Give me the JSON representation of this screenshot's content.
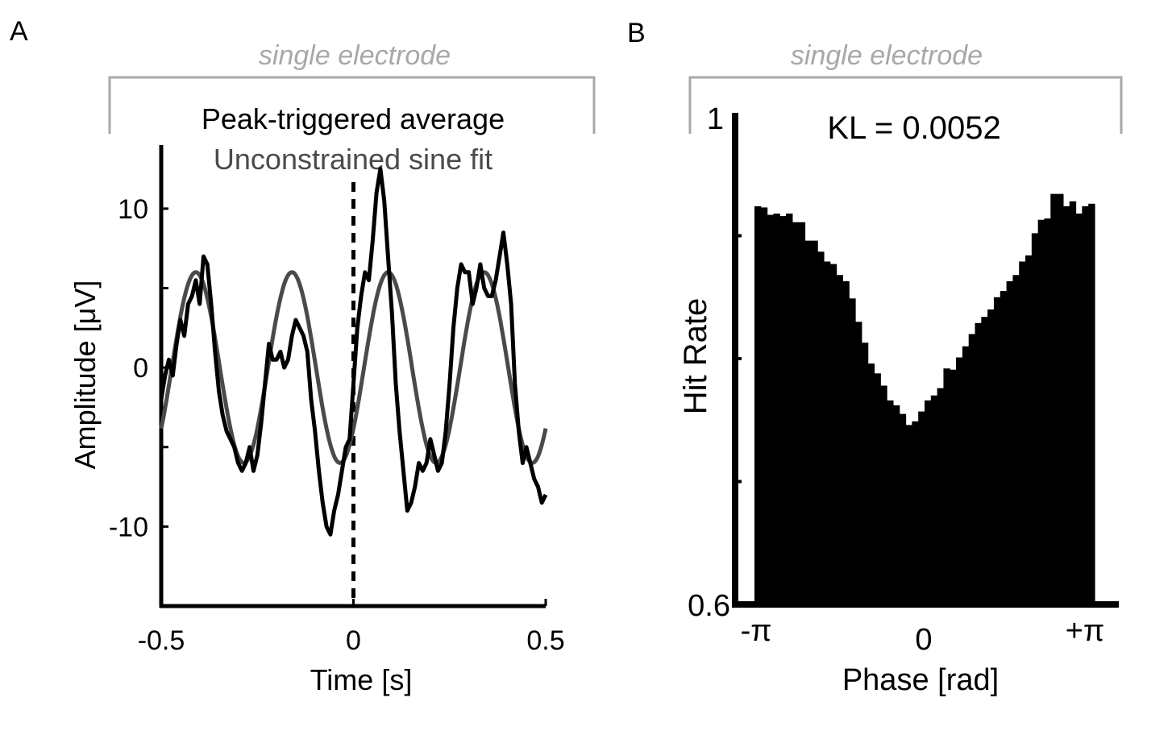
{
  "panels": {
    "a": {
      "letter": "A",
      "bracket_label": "single electrode",
      "legend": [
        "Peak-triggered average",
        "Unconstrained sine fit"
      ],
      "xlabel": "Time [s]",
      "ylabel": "Amplitude [μV]"
    },
    "b": {
      "letter": "B",
      "bracket_label": "single electrode",
      "annotation": "KL = 0.0052",
      "xlabel": "Phase [rad]",
      "ylabel": "Hit Rate"
    }
  },
  "colors": {
    "pta": "#000000",
    "sine": "#4a4a4a",
    "bracket": "#a8a8a8",
    "bars": "#000000"
  },
  "chart_data": [
    {
      "type": "line",
      "xlim": [
        -0.5,
        0.5
      ],
      "ylim": [
        -15,
        14
      ],
      "xticks": [
        -0.5,
        0,
        0.5
      ],
      "xtick_labels": [
        "-0.5",
        "0",
        "0.5"
      ],
      "yticks": [
        10,
        0,
        -10
      ],
      "ytick_labels": [
        "10",
        "0",
        "-10"
      ],
      "minor_yticks": [
        5,
        -5
      ],
      "vline_x": 0,
      "series": [
        {
          "name": "Peak-triggered average",
          "x": [
            -0.5,
            -0.49,
            -0.48,
            -0.47,
            -0.46,
            -0.45,
            -0.44,
            -0.43,
            -0.42,
            -0.41,
            -0.4,
            -0.39,
            -0.38,
            -0.37,
            -0.36,
            -0.35,
            -0.34,
            -0.33,
            -0.32,
            -0.31,
            -0.3,
            -0.29,
            -0.28,
            -0.27,
            -0.26,
            -0.25,
            -0.24,
            -0.23,
            -0.22,
            -0.21,
            -0.2,
            -0.19,
            -0.18,
            -0.17,
            -0.16,
            -0.15,
            -0.14,
            -0.13,
            -0.12,
            -0.11,
            -0.1,
            -0.09,
            -0.08,
            -0.07,
            -0.06,
            -0.05,
            -0.04,
            -0.03,
            -0.02,
            -0.01,
            0.0,
            0.01,
            0.02,
            0.03,
            0.04,
            0.05,
            0.06,
            0.07,
            0.08,
            0.09,
            0.1,
            0.11,
            0.12,
            0.13,
            0.14,
            0.15,
            0.16,
            0.17,
            0.18,
            0.19,
            0.2,
            0.21,
            0.22,
            0.23,
            0.24,
            0.25,
            0.26,
            0.27,
            0.28,
            0.29,
            0.3,
            0.31,
            0.32,
            0.33,
            0.34,
            0.35,
            0.36,
            0.37,
            0.38,
            0.39,
            0.4,
            0.41,
            0.42,
            0.43,
            0.44,
            0.45,
            0.46,
            0.47,
            0.48,
            0.49,
            0.5
          ],
          "y": [
            -2.0,
            -0.5,
            0.5,
            -0.5,
            1.5,
            3.0,
            2.0,
            4.0,
            4.5,
            5.5,
            4.0,
            7.0,
            6.5,
            4.0,
            1.0,
            -1.5,
            -3.0,
            -4.0,
            -4.5,
            -5.0,
            -6.0,
            -6.5,
            -6.0,
            -5.0,
            -6.5,
            -5.5,
            -3.5,
            -1.0,
            1.5,
            0.5,
            0.5,
            1.0,
            0.0,
            0.5,
            2.0,
            3.0,
            2.5,
            2.0,
            1.0,
            -2.0,
            -4.0,
            -6.5,
            -8.5,
            -10.0,
            -10.5,
            -9.0,
            -8.0,
            -6.5,
            -5.0,
            -4.5,
            -1.0,
            2.5,
            4.5,
            6.0,
            5.5,
            8.0,
            11.0,
            12.5,
            10.5,
            7.0,
            3.5,
            -1.0,
            -4.0,
            -6.5,
            -9.0,
            -8.5,
            -7.5,
            -6.0,
            -6.5,
            -6.0,
            -4.5,
            -5.5,
            -6.5,
            -6.0,
            -4.0,
            -1.0,
            2.5,
            5.0,
            6.5,
            6.0,
            6.0,
            4.0,
            5.0,
            6.5,
            5.0,
            4.5,
            4.5,
            5.5,
            7.0,
            8.5,
            6.5,
            4.0,
            -1.0,
            -4.0,
            -6.0,
            -5.0,
            -6.0,
            -7.0,
            -7.5,
            -8.5,
            -8.0
          ]
        },
        {
          "name": "Unconstrained sine fit",
          "function": "6*sin(2*pi*4*(t-0.0275))",
          "amplitude": 6,
          "frequency_hz": 4,
          "peak_times_s": [
            -0.4125,
            -0.1625,
            0.0875,
            0.3375
          ]
        }
      ]
    },
    {
      "type": "bar",
      "xlabel": "Phase [rad]",
      "ylabel": "Hit Rate",
      "xlim": [
        -3.1416,
        3.1416
      ],
      "ylim": [
        0.6,
        1.0
      ],
      "xtick_labels": [
        "-π",
        "0",
        "+π"
      ],
      "ytick_labels": [
        "0.6",
        "1"
      ],
      "minor_yticks": [
        0.7,
        0.8,
        0.9
      ],
      "annotation": "KL = 0.0052",
      "values": [
        0.924,
        0.923,
        0.917,
        0.918,
        0.916,
        0.918,
        0.911,
        0.911,
        0.896,
        0.896,
        0.887,
        0.879,
        0.877,
        0.868,
        0.863,
        0.849,
        0.83,
        0.813,
        0.796,
        0.788,
        0.778,
        0.766,
        0.762,
        0.755,
        0.746,
        0.749,
        0.757,
        0.766,
        0.77,
        0.776,
        0.792,
        0.791,
        0.801,
        0.81,
        0.82,
        0.829,
        0.834,
        0.84,
        0.85,
        0.855,
        0.863,
        0.868,
        0.879,
        0.884,
        0.902,
        0.913,
        0.914,
        0.934,
        0.934,
        0.924,
        0.928,
        0.918,
        0.924,
        0.926
      ]
    }
  ]
}
